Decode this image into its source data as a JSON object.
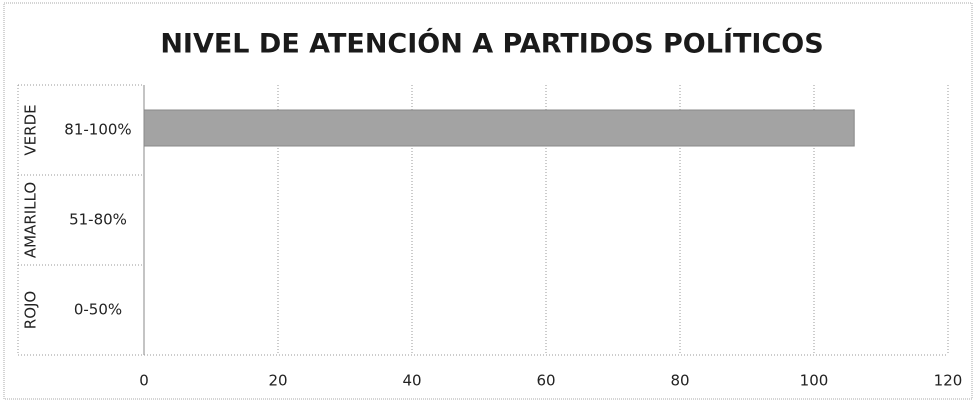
{
  "chart_data": {
    "type": "bar",
    "orientation": "horizontal",
    "title": "NIVEL DE ATENCIÓN A PARTIDOS POLÍTICOS",
    "groups": [
      "VERDE",
      "AMARILLO",
      "ROJO"
    ],
    "categories": [
      "81-100%",
      "51-80%",
      "0-50%"
    ],
    "values": [
      106,
      null,
      null
    ],
    "color": "#a3a3a3",
    "xlim": [
      0,
      120
    ],
    "xticks": [
      0,
      20,
      40,
      60,
      80,
      100,
      120
    ],
    "grid": true
  }
}
